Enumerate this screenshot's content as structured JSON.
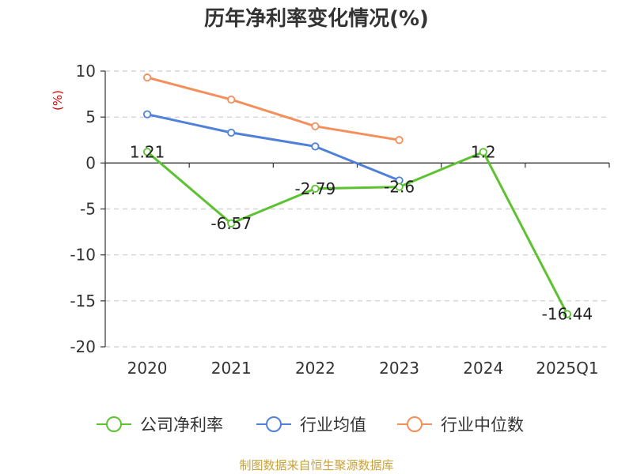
{
  "chart_data": {
    "type": "line",
    "title": "历年净利率变化情况(%)",
    "unit_label": "(%)",
    "categories": [
      "2020",
      "2021",
      "2022",
      "2023",
      "2024",
      "2025Q1"
    ],
    "ylim": [
      -20,
      10
    ],
    "yticks": [
      10,
      5,
      0,
      -5,
      -10,
      -15,
      -20
    ],
    "grid": true,
    "legend_position": "bottom",
    "series": [
      {
        "name": "公司净利率",
        "color": "#5cc232",
        "values": [
          1.21,
          -6.57,
          -2.79,
          -2.6,
          1.2,
          -16.44
        ],
        "labels": [
          "1.21",
          "-6.57",
          "-2.79",
          "-2.6",
          "1.2",
          "-16.44"
        ]
      },
      {
        "name": "行业均值",
        "color": "#4f81d9",
        "values": [
          5.3,
          3.3,
          1.8,
          -1.9,
          null,
          null
        ]
      },
      {
        "name": "行业中位数",
        "color": "#f48e5a",
        "values": [
          9.3,
          6.9,
          4.0,
          2.5,
          null,
          null
        ]
      }
    ],
    "source": "制图数据来自恒生聚源数据库"
  }
}
